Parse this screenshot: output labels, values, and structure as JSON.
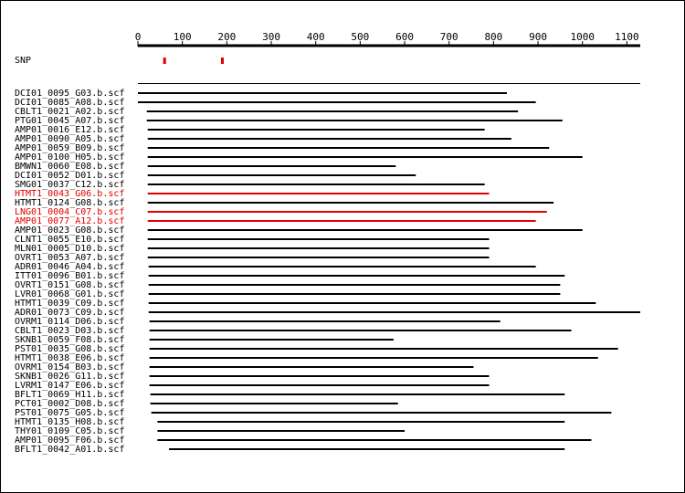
{
  "colors": {
    "normal": "#000000",
    "highlight": "#e00000",
    "snp_marker": "#e00000"
  },
  "axis": {
    "min": 0,
    "max": 1130,
    "ticks": [
      0,
      100,
      200,
      300,
      400,
      500,
      600,
      700,
      800,
      900,
      1000,
      1100
    ]
  },
  "snp": {
    "label": "SNP",
    "positions": [
      60,
      190
    ]
  },
  "chart_data": {
    "type": "alignment",
    "reference": {
      "start": 0,
      "end": 1130
    },
    "reads": [
      {
        "name": "DCI01_0095_G03.b.scf",
        "start": 0,
        "end": 830,
        "highlight": false
      },
      {
        "name": "DCI01_0085_A08.b.scf",
        "start": 0,
        "end": 895,
        "highlight": false
      },
      {
        "name": "CBLT1_0021_A02.b.scf",
        "start": 20,
        "end": 855,
        "highlight": false
      },
      {
        "name": "PTG01_0045_A07.b.scf",
        "start": 20,
        "end": 955,
        "highlight": false
      },
      {
        "name": "AMP01_0016_E12.b.scf",
        "start": 22,
        "end": 780,
        "highlight": false
      },
      {
        "name": "AMP01_0090_A05.b.scf",
        "start": 22,
        "end": 840,
        "highlight": false
      },
      {
        "name": "AMP01_0059_B09.b.scf",
        "start": 22,
        "end": 925,
        "highlight": false
      },
      {
        "name": "AMP01_0100_H05.b.scf",
        "start": 22,
        "end": 1000,
        "highlight": false
      },
      {
        "name": "BMWN1_0060_E08.b.scf",
        "start": 22,
        "end": 580,
        "highlight": false
      },
      {
        "name": "DCI01_0052_D01.b.scf",
        "start": 22,
        "end": 625,
        "highlight": false
      },
      {
        "name": "SMG01_0037_C12.b.scf",
        "start": 22,
        "end": 780,
        "highlight": false
      },
      {
        "name": "HTMT1_0043_G06.b.scf",
        "start": 22,
        "end": 790,
        "highlight": true
      },
      {
        "name": "HTMT1_0124_G08.b.scf",
        "start": 22,
        "end": 935,
        "highlight": false
      },
      {
        "name": "LNG01_0004_C07.b.scf",
        "start": 22,
        "end": 920,
        "highlight": true
      },
      {
        "name": "AMP01_0077_A12.b.scf",
        "start": 22,
        "end": 895,
        "highlight": true
      },
      {
        "name": "AMP01_0023_G08.b.scf",
        "start": 22,
        "end": 1000,
        "highlight": false
      },
      {
        "name": "CLNT1_0055_E10.b.scf",
        "start": 22,
        "end": 790,
        "highlight": false
      },
      {
        "name": "MLN01_0005_D10.b.scf",
        "start": 22,
        "end": 790,
        "highlight": false
      },
      {
        "name": "OVRT1_0053_A07.b.scf",
        "start": 22,
        "end": 790,
        "highlight": false
      },
      {
        "name": "ADR01_0046_A04.b.scf",
        "start": 24,
        "end": 895,
        "highlight": false
      },
      {
        "name": "ITT01_0096_B01.b.scf",
        "start": 24,
        "end": 960,
        "highlight": false
      },
      {
        "name": "OVRT1_0151_G08.b.scf",
        "start": 24,
        "end": 950,
        "highlight": false
      },
      {
        "name": "LVR01_0068_G01.b.scf",
        "start": 24,
        "end": 950,
        "highlight": false
      },
      {
        "name": "HTMT1_0039_C09.b.scf",
        "start": 24,
        "end": 1030,
        "highlight": false
      },
      {
        "name": "ADR01_0073_C09.b.scf",
        "start": 24,
        "end": 1130,
        "highlight": false
      },
      {
        "name": "OVRM1_0114_D06.b.scf",
        "start": 26,
        "end": 815,
        "highlight": false
      },
      {
        "name": "CBLT1_0023_D03.b.scf",
        "start": 26,
        "end": 975,
        "highlight": false
      },
      {
        "name": "SKNB1_0059_F08.b.scf",
        "start": 26,
        "end": 575,
        "highlight": false
      },
      {
        "name": "PST01_0035_G08.b.scf",
        "start": 26,
        "end": 1080,
        "highlight": false
      },
      {
        "name": "HTMT1_0038_E06.b.scf",
        "start": 26,
        "end": 1035,
        "highlight": false
      },
      {
        "name": "OVRM1_0154_B03.b.scf",
        "start": 26,
        "end": 755,
        "highlight": false
      },
      {
        "name": "SKNB1_0026_G11.b.scf",
        "start": 26,
        "end": 790,
        "highlight": false
      },
      {
        "name": "LVRM1_0147_E06.b.scf",
        "start": 26,
        "end": 790,
        "highlight": false
      },
      {
        "name": "BFLT1_0069_H11.b.scf",
        "start": 28,
        "end": 960,
        "highlight": false
      },
      {
        "name": "PCT01_0002_D08.b.scf",
        "start": 28,
        "end": 585,
        "highlight": false
      },
      {
        "name": "PST01_0075_G05.b.scf",
        "start": 30,
        "end": 1065,
        "highlight": false
      },
      {
        "name": "HTMT1_0135_H08.b.scf",
        "start": 44,
        "end": 960,
        "highlight": false
      },
      {
        "name": "THY01_0109_C05.b.scf",
        "start": 44,
        "end": 600,
        "highlight": false
      },
      {
        "name": "AMP01_0095_F06.b.scf",
        "start": 44,
        "end": 1020,
        "highlight": false
      },
      {
        "name": "BFLT1_0042_A01.b.scf",
        "start": 70,
        "end": 960,
        "highlight": false
      }
    ]
  }
}
